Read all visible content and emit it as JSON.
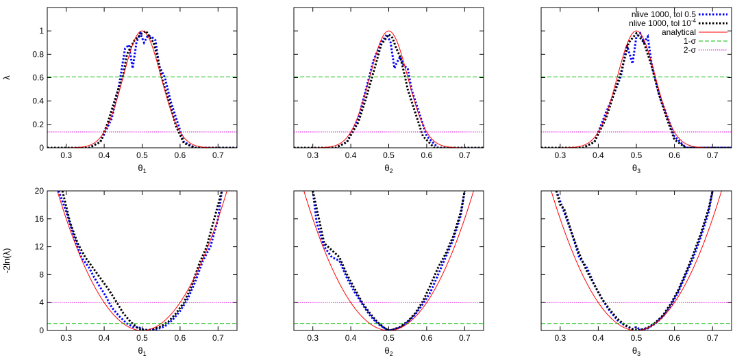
{
  "chart_data": [
    {
      "type": "line",
      "row": "top",
      "xlabel": "θ",
      "xsub": "1",
      "ylabel": "λ",
      "xlim": [
        0.25,
        0.75
      ],
      "ylim": [
        0,
        1.2
      ],
      "xticks": [
        "0.3",
        "0.4",
        "0.5",
        "0.6",
        "0.7"
      ],
      "yticks": [
        "0",
        "0.2",
        "0.4",
        "0.6",
        "0.8",
        "1"
      ],
      "series": [
        {
          "name": "nlive 1000, tol 0.5",
          "color": "#0000ff",
          "dash": "dot",
          "x": [
            0.25,
            0.36,
            0.39,
            0.42,
            0.44,
            0.455,
            0.465,
            0.475,
            0.485,
            0.495,
            0.505,
            0.515,
            0.525,
            0.535,
            0.545,
            0.56,
            0.575,
            0.59,
            0.61,
            0.64,
            0.75
          ],
          "y": [
            0,
            0,
            0.05,
            0.25,
            0.55,
            0.85,
            0.88,
            0.68,
            0.9,
            0.98,
            0.9,
            0.96,
            0.95,
            0.92,
            0.7,
            0.6,
            0.4,
            0.25,
            0.05,
            0,
            0
          ]
        },
        {
          "name": "nlive 1000, tol 10",
          "name_sup": "-4",
          "color": "#000000",
          "dash": "dot",
          "x": [
            0.25,
            0.36,
            0.39,
            0.41,
            0.43,
            0.45,
            0.46,
            0.48,
            0.5,
            0.51,
            0.52,
            0.53,
            0.54,
            0.55,
            0.57,
            0.59,
            0.61,
            0.64,
            0.75
          ],
          "y": [
            0,
            0,
            0.05,
            0.22,
            0.43,
            0.62,
            0.8,
            0.92,
            0.98,
            1.0,
            0.95,
            0.9,
            0.78,
            0.62,
            0.4,
            0.18,
            0.04,
            0,
            0
          ]
        },
        {
          "name": "analytical",
          "color": "#ff0000",
          "dash": "solid",
          "gaussian": {
            "mu": 0.5,
            "sigma": 0.05
          }
        },
        {
          "name": "1-σ",
          "color": "#00bb00",
          "dash": "dash",
          "constant": 0.6065
        },
        {
          "name": "2-σ",
          "color": "#e000e0",
          "dash": "fine",
          "constant": 0.1353
        }
      ]
    },
    {
      "type": "line",
      "row": "top",
      "xlabel": "θ",
      "xsub": "2",
      "ylabel": "",
      "xlim": [
        0.25,
        0.75
      ],
      "ylim": [
        0,
        1.2
      ],
      "xticks": [
        "0.3",
        "0.4",
        "0.5",
        "0.6",
        "0.7"
      ],
      "yticks": [
        "0",
        "0.2",
        "0.4",
        "0.6",
        "0.8",
        "1"
      ],
      "series": [
        {
          "name": "nlive 1000, tol 0.5",
          "color": "#0000ff",
          "dash": "dot",
          "x": [
            0.25,
            0.36,
            0.39,
            0.42,
            0.44,
            0.46,
            0.48,
            0.495,
            0.505,
            0.515,
            0.52,
            0.53,
            0.54,
            0.55,
            0.56,
            0.58,
            0.6,
            0.63,
            0.75
          ],
          "y": [
            0,
            0,
            0.05,
            0.25,
            0.5,
            0.75,
            0.9,
            0.97,
            0.9,
            0.68,
            0.72,
            0.78,
            0.7,
            0.68,
            0.5,
            0.3,
            0.1,
            0,
            0
          ]
        },
        {
          "name": "nlive 1000, tol 10",
          "name_sup": "-4",
          "color": "#000000",
          "dash": "dot",
          "x": [
            0.25,
            0.36,
            0.39,
            0.42,
            0.44,
            0.46,
            0.48,
            0.5,
            0.51,
            0.52,
            0.53,
            0.54,
            0.55,
            0.57,
            0.59,
            0.62,
            0.75
          ],
          "y": [
            0,
            0,
            0.05,
            0.22,
            0.42,
            0.65,
            0.88,
            0.97,
            0.94,
            0.85,
            0.78,
            0.65,
            0.5,
            0.3,
            0.1,
            0,
            0
          ]
        },
        {
          "name": "analytical",
          "color": "#ff0000",
          "dash": "solid",
          "gaussian": {
            "mu": 0.5,
            "sigma": 0.05
          }
        },
        {
          "name": "1-σ",
          "color": "#00bb00",
          "dash": "dash",
          "constant": 0.6065
        },
        {
          "name": "2-σ",
          "color": "#e000e0",
          "dash": "fine",
          "constant": 0.1353
        }
      ]
    },
    {
      "type": "line",
      "row": "top",
      "xlabel": "θ",
      "xsub": "3",
      "ylabel": "",
      "xlim": [
        0.25,
        0.75
      ],
      "ylim": [
        0,
        1.2
      ],
      "xticks": [
        "0.3",
        "0.4",
        "0.5",
        "0.6",
        "0.7"
      ],
      "yticks": [
        "0",
        "0.2",
        "0.4",
        "0.6",
        "0.8",
        "1"
      ],
      "series": [
        {
          "name": "nlive 1000, tol 0.5",
          "color": "#0000ff",
          "dash": "dot",
          "x": [
            0.25,
            0.36,
            0.39,
            0.42,
            0.44,
            0.46,
            0.475,
            0.49,
            0.5,
            0.51,
            0.52,
            0.53,
            0.54,
            0.56,
            0.58,
            0.6,
            0.63,
            0.75
          ],
          "y": [
            0,
            0,
            0.05,
            0.3,
            0.45,
            0.62,
            0.88,
            0.72,
            0.95,
            0.98,
            0.9,
            0.95,
            0.72,
            0.45,
            0.28,
            0.1,
            0,
            0
          ]
        },
        {
          "name": "nlive 1000, tol 10",
          "name_sup": "-4",
          "color": "#000000",
          "dash": "dot",
          "x": [
            0.25,
            0.36,
            0.39,
            0.42,
            0.44,
            0.46,
            0.48,
            0.5,
            0.52,
            0.54,
            0.56,
            0.58,
            0.6,
            0.63,
            0.75
          ],
          "y": [
            0,
            0,
            0.05,
            0.25,
            0.45,
            0.65,
            0.9,
            0.98,
            0.9,
            0.7,
            0.45,
            0.25,
            0.07,
            0,
            0
          ]
        },
        {
          "name": "analytical",
          "color": "#ff0000",
          "dash": "solid",
          "gaussian": {
            "mu": 0.5,
            "sigma": 0.05
          }
        },
        {
          "name": "1-σ",
          "color": "#00bb00",
          "dash": "dash",
          "constant": 0.6065
        },
        {
          "name": "2-σ",
          "color": "#e000e0",
          "dash": "fine",
          "constant": 0.1353
        }
      ],
      "legend": "top-right"
    },
    {
      "type": "line",
      "row": "bottom",
      "xlabel": "θ",
      "xsub": "1",
      "ylabel": "-2ln(λ)",
      "xlim": [
        0.25,
        0.75
      ],
      "ylim": [
        0,
        20
      ],
      "xticks": [
        "0.3",
        "0.4",
        "0.5",
        "0.6",
        "0.7"
      ],
      "yticks": [
        "0",
        "4",
        "8",
        "12",
        "16",
        "20"
      ],
      "series": [
        {
          "name": "nlive 1000, tol 0.5",
          "color": "#0000ff",
          "dash": "dot",
          "x": [
            0.28,
            0.3,
            0.32,
            0.34,
            0.36,
            0.38,
            0.4,
            0.42,
            0.44,
            0.46,
            0.48,
            0.49,
            0.5,
            0.51,
            0.52,
            0.54,
            0.56,
            0.58,
            0.6,
            0.62,
            0.64,
            0.66,
            0.68,
            0.7,
            0.71
          ],
          "y": [
            20,
            17,
            13.5,
            10.5,
            9,
            7,
            5.3,
            3.3,
            2,
            1,
            0.4,
            0.5,
            0.2,
            0.1,
            0.05,
            0.2,
            0.6,
            1.5,
            2.8,
            4.5,
            7,
            10,
            12,
            16,
            20
          ]
        },
        {
          "name": "nlive 1000, tol 10",
          "name_sup": "-4",
          "color": "#000000",
          "dash": "dot",
          "x": [
            0.29,
            0.31,
            0.33,
            0.35,
            0.37,
            0.39,
            0.41,
            0.43,
            0.45,
            0.47,
            0.49,
            0.5,
            0.51,
            0.53,
            0.55,
            0.57,
            0.59,
            0.61,
            0.63,
            0.65,
            0.67,
            0.69,
            0.71
          ],
          "y": [
            20,
            15.5,
            12.5,
            10.5,
            9,
            7.5,
            6,
            4.3,
            2.5,
            1.2,
            0.3,
            0.05,
            0,
            0.2,
            0.6,
            1.3,
            2.5,
            4,
            6.3,
            9.5,
            12,
            16,
            20
          ]
        },
        {
          "name": "analytical",
          "color": "#ff0000",
          "dash": "solid",
          "parabola": {
            "mu": 0.5,
            "sigma": 0.05
          }
        },
        {
          "name": "1-σ",
          "color": "#00bb00",
          "dash": "dash",
          "constant": 1
        },
        {
          "name": "2-σ",
          "color": "#e000e0",
          "dash": "fine",
          "constant": 4
        }
      ]
    },
    {
      "type": "line",
      "row": "bottom",
      "xlabel": "θ",
      "xsub": "2",
      "ylabel": "",
      "xlim": [
        0.25,
        0.75
      ],
      "ylim": [
        0,
        20
      ],
      "xticks": [
        "0.3",
        "0.4",
        "0.5",
        "0.6",
        "0.7"
      ],
      "yticks": [
        "0",
        "4",
        "8",
        "12",
        "16",
        "20"
      ],
      "series": [
        {
          "name": "nlive 1000, tol 0.5",
          "color": "#0000ff",
          "dash": "dot",
          "x": [
            0.3,
            0.31,
            0.33,
            0.35,
            0.37,
            0.39,
            0.41,
            0.43,
            0.45,
            0.47,
            0.49,
            0.5,
            0.51,
            0.53,
            0.55,
            0.57,
            0.59,
            0.61,
            0.63,
            0.65,
            0.67,
            0.69,
            0.7
          ],
          "y": [
            20,
            15.5,
            12,
            10.5,
            10,
            7.5,
            5.5,
            3.8,
            2.2,
            1,
            0.3,
            0,
            0.1,
            0.4,
            1.2,
            2.3,
            3.8,
            5.5,
            8,
            10.5,
            13,
            16.5,
            20
          ]
        },
        {
          "name": "nlive 1000, tol 10",
          "name_sup": "-4",
          "color": "#000000",
          "dash": "dot",
          "x": [
            0.3,
            0.32,
            0.33,
            0.35,
            0.37,
            0.39,
            0.41,
            0.43,
            0.45,
            0.47,
            0.49,
            0.5,
            0.51,
            0.53,
            0.55,
            0.57,
            0.59,
            0.61,
            0.63,
            0.65,
            0.67,
            0.69,
            0.7
          ],
          "y": [
            20,
            15,
            12.5,
            11.5,
            10.5,
            8,
            6,
            4,
            2.5,
            1.2,
            0.3,
            0,
            0.1,
            0.5,
            1.3,
            2.5,
            4.2,
            6.5,
            9,
            11,
            13.5,
            17,
            20
          ]
        },
        {
          "name": "analytical",
          "color": "#ff0000",
          "dash": "solid",
          "parabola": {
            "mu": 0.5,
            "sigma": 0.05
          }
        },
        {
          "name": "1-σ",
          "color": "#00bb00",
          "dash": "dash",
          "constant": 1
        },
        {
          "name": "2-σ",
          "color": "#e000e0",
          "dash": "fine",
          "constant": 4
        }
      ]
    },
    {
      "type": "line",
      "row": "bottom",
      "xlabel": "θ",
      "xsub": "3",
      "ylabel": "",
      "xlim": [
        0.25,
        0.75
      ],
      "ylim": [
        0,
        20
      ],
      "xticks": [
        "0.3",
        "0.4",
        "0.5",
        "0.6",
        "0.7"
      ],
      "yticks": [
        "0",
        "4",
        "8",
        "12",
        "16",
        "20"
      ],
      "series": [
        {
          "name": "nlive 1000, tol 0.5",
          "color": "#0000ff",
          "dash": "dot",
          "x": [
            0.29,
            0.31,
            0.33,
            0.35,
            0.37,
            0.39,
            0.41,
            0.43,
            0.45,
            0.47,
            0.49,
            0.5,
            0.51,
            0.53,
            0.55,
            0.57,
            0.59,
            0.61,
            0.63,
            0.65,
            0.67,
            0.69,
            0.7
          ],
          "y": [
            20,
            17,
            14,
            10.5,
            9,
            6.5,
            4.5,
            2.8,
            1.5,
            0.7,
            0.2,
            0.5,
            0.1,
            0.3,
            1,
            2,
            3.5,
            5.5,
            8,
            10.5,
            13.5,
            17,
            20
          ]
        },
        {
          "name": "nlive 1000, tol 10",
          "name_sup": "-4",
          "color": "#000000",
          "dash": "dot",
          "x": [
            0.29,
            0.3,
            0.31,
            0.33,
            0.35,
            0.37,
            0.39,
            0.41,
            0.43,
            0.45,
            0.47,
            0.49,
            0.5,
            0.51,
            0.53,
            0.55,
            0.57,
            0.59,
            0.61,
            0.63,
            0.65,
            0.67,
            0.69,
            0.7
          ],
          "y": [
            20,
            18,
            17.5,
            14,
            11,
            8.5,
            6.5,
            4.5,
            3,
            1.7,
            0.8,
            0.2,
            0,
            0.05,
            0.4,
            1.1,
            2.2,
            3.8,
            5.8,
            8.3,
            11,
            14,
            17.5,
            20
          ]
        },
        {
          "name": "analytical",
          "color": "#ff0000",
          "dash": "solid",
          "parabola": {
            "mu": 0.5,
            "sigma": 0.05
          }
        },
        {
          "name": "1-σ",
          "color": "#00bb00",
          "dash": "dash",
          "constant": 1
        },
        {
          "name": "2-σ",
          "color": "#e000e0",
          "dash": "fine",
          "constant": 4
        }
      ]
    }
  ]
}
